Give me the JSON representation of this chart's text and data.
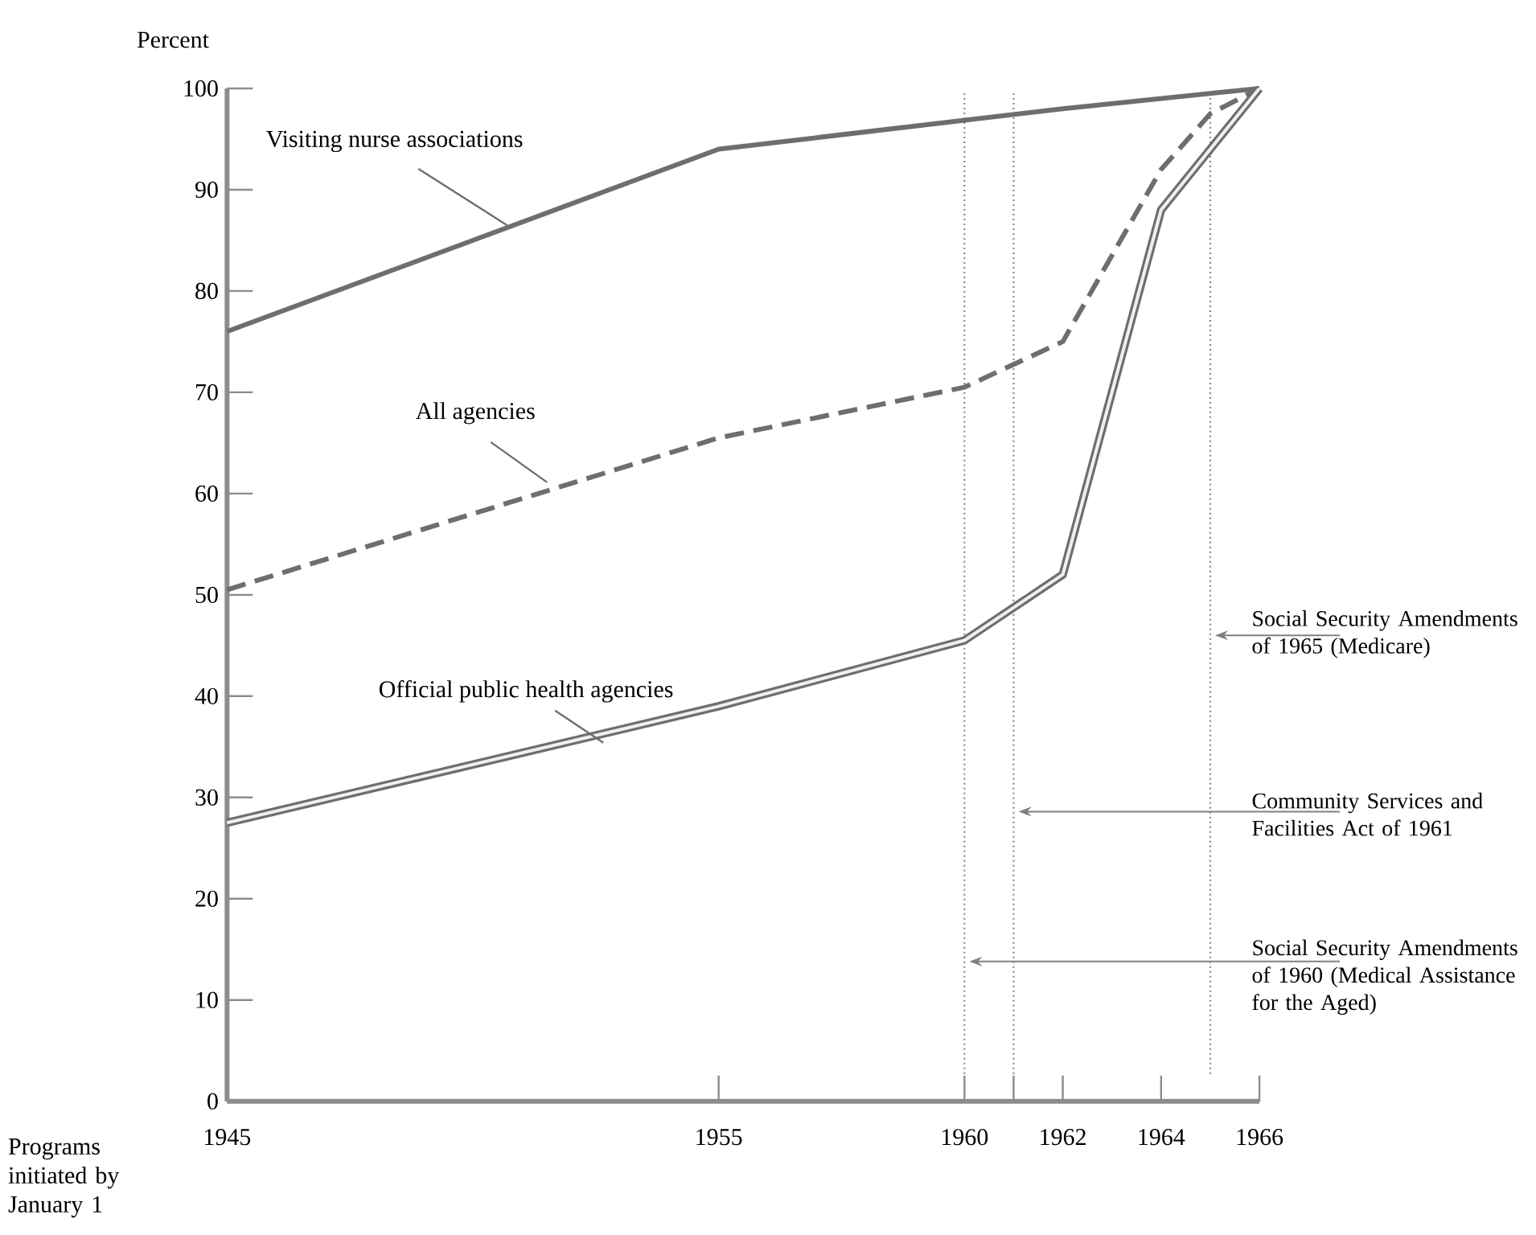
{
  "chart_data": {
    "type": "line",
    "ylabel": "Percent",
    "xlabel": "Programs initiated by January 1",
    "xlim": [
      1945,
      1966
    ],
    "ylim": [
      0,
      100
    ],
    "xticks": [
      1945,
      1955,
      1960,
      {
        "value": 1961,
        "label": null
      },
      1962,
      1964,
      1966
    ],
    "yticks": [
      0,
      10,
      20,
      30,
      40,
      50,
      60,
      70,
      80,
      90,
      100
    ],
    "grid": false,
    "legend": false,
    "marker": "none",
    "series": [
      {
        "name": "Visiting nurse associations",
        "color": "#6e6e6e",
        "line_style": "solid",
        "x": [
          1945,
          1955,
          1962,
          1966
        ],
        "values": [
          76,
          94,
          98,
          100
        ]
      },
      {
        "name": "All agencies",
        "color": "#6e6e6e",
        "line_style": "dashed",
        "x": [
          1945,
          1955,
          1960,
          1962,
          1964,
          1965,
          1966
        ],
        "values": [
          50.5,
          65.5,
          70.5,
          75,
          92,
          97.5,
          100
        ]
      },
      {
        "name": "Official public health agencies",
        "color": "#6e6e6e",
        "line_style": "solid",
        "x": [
          1945,
          1955,
          1960,
          1962,
          1964,
          1966
        ],
        "values": [
          27.5,
          39,
          45.5,
          52,
          88,
          100
        ]
      }
    ],
    "ref_lines": [
      {
        "axis": "x",
        "value": 1965,
        "label": "Social Security Amendments of 1965 (Medicare)",
        "color": "#808080",
        "line_style": "dotted"
      },
      {
        "axis": "x",
        "value": 1961,
        "label": "Community Services and Facilities Act of 1961",
        "color": "#808080",
        "line_style": "dotted"
      },
      {
        "axis": "x",
        "value": 1960,
        "label": "Social Security Amendments of 1960 (Medical Assistance for the Aged)",
        "color": "#808080",
        "line_style": "dotted"
      }
    ]
  }
}
